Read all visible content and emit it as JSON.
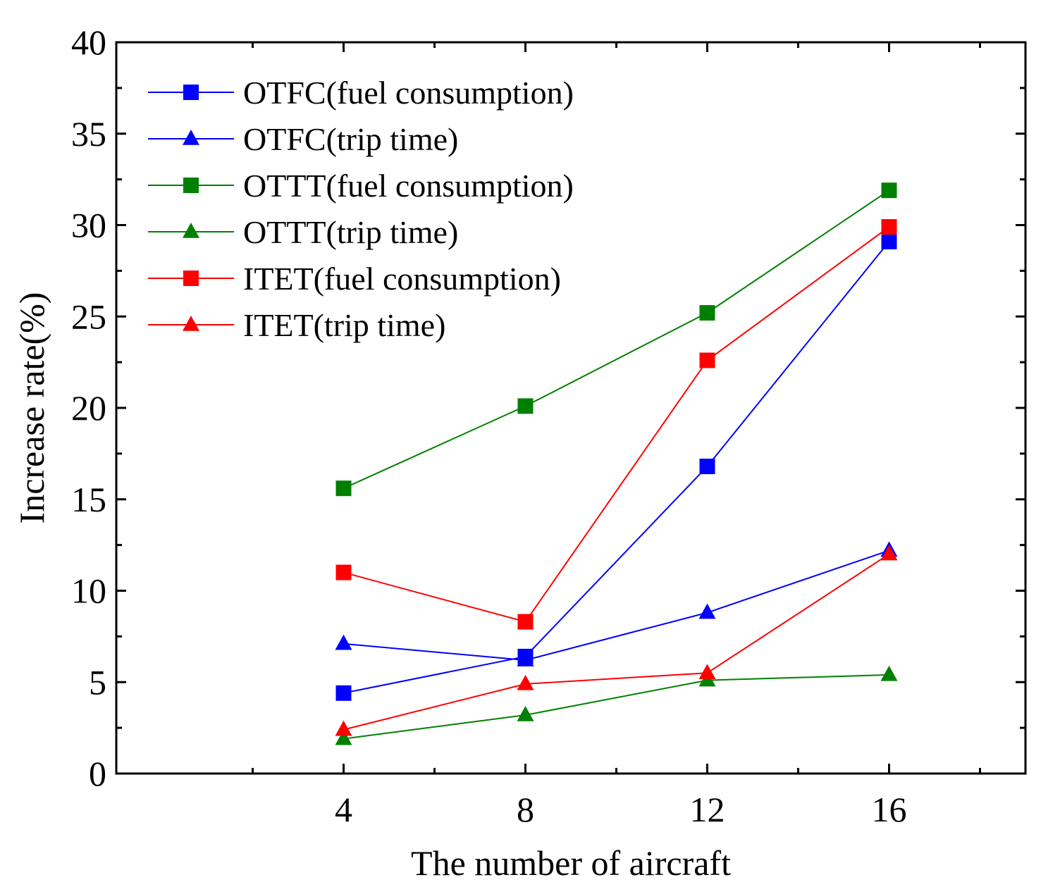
{
  "chart_data": {
    "type": "line",
    "title": "",
    "xlabel": "The number of aircraft",
    "ylabel": "Increase rate(%)",
    "x": [
      4,
      8,
      12,
      16
    ],
    "xlim": [
      -1,
      19
    ],
    "ylim": [
      0,
      40
    ],
    "xticks": [
      4,
      8,
      12,
      16
    ],
    "yticks": [
      0,
      5,
      10,
      15,
      20,
      25,
      30,
      35,
      40
    ],
    "grid": false,
    "legend_position": "top-left",
    "series": [
      {
        "name": "OTFC(fuel consumption)",
        "color": "#0000ff",
        "marker": "square",
        "values": [
          4.4,
          6.4,
          16.8,
          29.1
        ]
      },
      {
        "name": "OTFC(trip time)",
        "color": "#0000ff",
        "marker": "triangle",
        "values": [
          7.1,
          6.2,
          8.8,
          12.2
        ]
      },
      {
        "name": "OTTT(fuel consumption)",
        "color": "#008000",
        "marker": "square",
        "values": [
          15.6,
          20.1,
          25.2,
          31.9
        ]
      },
      {
        "name": "OTTT(trip time)",
        "color": "#008000",
        "marker": "triangle",
        "values": [
          1.9,
          3.2,
          5.1,
          5.4
        ]
      },
      {
        "name": "ITET(fuel consumption)",
        "color": "#ff0000",
        "marker": "square",
        "values": [
          11.0,
          8.3,
          22.6,
          29.9
        ]
      },
      {
        "name": "ITET(trip time)",
        "color": "#ff0000",
        "marker": "triangle",
        "values": [
          2.4,
          4.9,
          5.5,
          12.0
        ]
      }
    ]
  }
}
